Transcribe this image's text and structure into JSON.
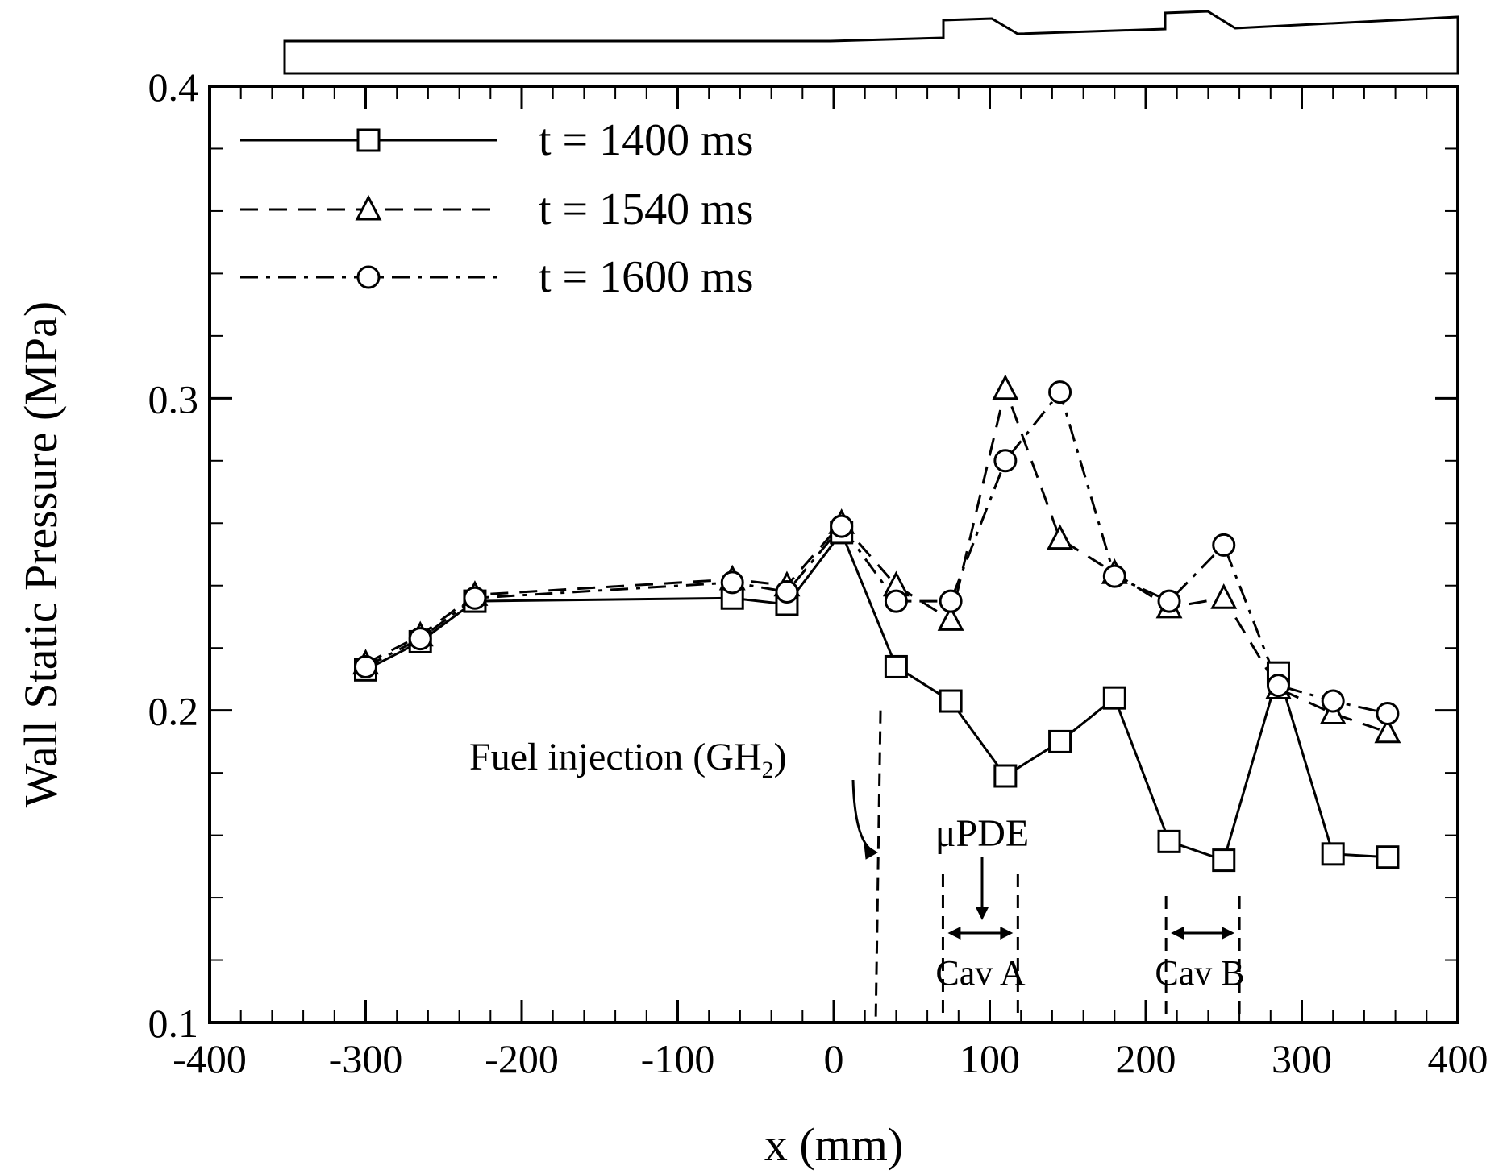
{
  "chart_data": {
    "type": "line",
    "title": "",
    "xlabel": "x (mm)",
    "ylabel": "Wall Static Pressure (MPa)",
    "xlim": [
      -400,
      400
    ],
    "ylim": [
      0.1,
      0.4
    ],
    "xticks": [
      -400,
      -300,
      -200,
      -100,
      0,
      100,
      200,
      300,
      400
    ],
    "yticks": [
      0.1,
      0.2,
      0.3,
      0.4
    ],
    "xtick_labels": [
      "-400",
      "-300",
      "-200",
      "-100",
      "0",
      "100",
      "200",
      "300",
      "400"
    ],
    "ytick_labels": [
      "0.1",
      "0.2",
      "0.3",
      "0.4"
    ],
    "grid": false,
    "legend_position": "top-left",
    "series": [
      {
        "name": "t = 1400 ms",
        "marker": "square",
        "line": "solid",
        "x": [
          -300,
          -265,
          -230,
          -65,
          -30,
          5,
          40,
          75,
          110,
          145,
          180,
          215,
          250,
          285,
          320,
          355
        ],
        "y": [
          0.213,
          0.222,
          0.235,
          0.236,
          0.234,
          0.257,
          0.214,
          0.203,
          0.179,
          0.19,
          0.204,
          0.158,
          0.152,
          0.212,
          0.154,
          0.153
        ]
      },
      {
        "name": "t = 1540 ms",
        "marker": "triangle",
        "line": "dashed",
        "x": [
          -300,
          -265,
          -230,
          -65,
          -30,
          5,
          40,
          75,
          110,
          145,
          180,
          215,
          250,
          285,
          320,
          355
        ],
        "y": [
          0.215,
          0.224,
          0.237,
          0.242,
          0.24,
          0.26,
          0.24,
          0.229,
          0.303,
          0.255,
          0.244,
          0.233,
          0.236,
          0.207,
          0.199,
          0.193
        ]
      },
      {
        "name": "t = 1600 ms",
        "marker": "circle",
        "line": "dashdot",
        "x": [
          -300,
          -265,
          -230,
          -65,
          -30,
          5,
          40,
          75,
          110,
          145,
          180,
          215,
          250,
          285,
          320,
          355
        ],
        "y": [
          0.214,
          0.223,
          0.236,
          0.241,
          0.238,
          0.259,
          0.235,
          0.235,
          0.28,
          0.302,
          0.243,
          0.235,
          0.253,
          0.208,
          0.203,
          0.199
        ]
      }
    ],
    "annotations": [
      {
        "id": "fuel",
        "text": "Fuel injection (GH",
        "subscript": "2",
        "close": ")",
        "x_mm": 30
      },
      {
        "id": "updE",
        "text": "μPDE",
        "x_mm": 95
      },
      {
        "id": "cavA",
        "text": "Cav A",
        "x_from": 70,
        "x_to": 118
      },
      {
        "id": "cavB",
        "text": "Cav B",
        "x_from": 213,
        "x_to": 260
      }
    ]
  }
}
